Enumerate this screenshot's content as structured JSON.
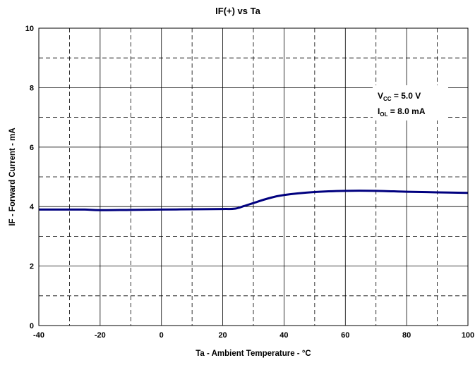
{
  "chart_data": {
    "type": "line",
    "title": "IF(+) vs Ta",
    "xlabel": "Ta - Ambient Temperature - °C",
    "ylabel": "IF - Forward Current - mA",
    "xlim": [
      -40,
      100
    ],
    "ylim": [
      0,
      10
    ],
    "x_ticks": [
      "-40",
      "-20",
      "0",
      "20",
      "40",
      "60",
      "80",
      "100"
    ],
    "y_ticks": [
      "0",
      "2",
      "4",
      "6",
      "8",
      "10"
    ],
    "grid": true,
    "annotations": [
      {
        "base": "V",
        "sub": "CC",
        "rest": " = 5.0 V"
      },
      {
        "base": "I",
        "sub": "OL",
        "rest": " = 8.0 mA"
      }
    ],
    "series": [
      {
        "color": "#00007f",
        "x": [
          -40,
          -30,
          -25,
          -20,
          -10,
          0,
          10,
          20,
          24,
          27,
          30,
          35,
          40,
          50,
          60,
          70,
          80,
          90,
          100
        ],
        "y": [
          3.9,
          3.9,
          3.9,
          3.88,
          3.89,
          3.9,
          3.91,
          3.92,
          3.93,
          4.02,
          4.12,
          4.28,
          4.39,
          4.49,
          4.53,
          4.53,
          4.5,
          4.48,
          4.46
        ]
      }
    ]
  }
}
